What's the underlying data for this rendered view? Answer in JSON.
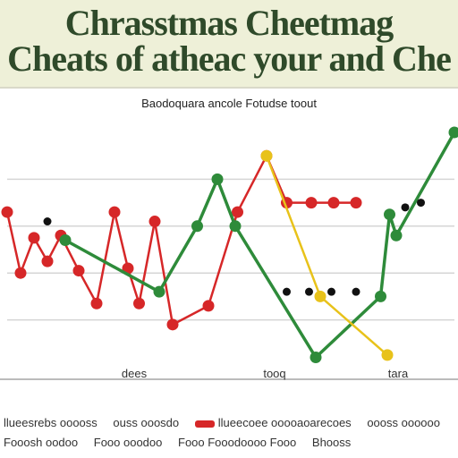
{
  "header": {
    "title_line1": "Chrasstmas Cheetmag",
    "title_line2": "Cheats of atheac your and Che"
  },
  "chart_data": {
    "type": "line",
    "title": "Baodoquara ancole Fotudse toout",
    "categories": [
      "dees",
      "tooq",
      "tara"
    ],
    "ylim": [
      0,
      10
    ],
    "grid": true,
    "series": [
      {
        "name": "lheesrebs",
        "color": "#d62728",
        "values": [
          {
            "x": 0.0,
            "y": 6.6
          },
          {
            "x": 0.6,
            "y": 4.0
          },
          {
            "x": 1.2,
            "y": 5.5
          },
          {
            "x": 1.8,
            "y": 4.5
          },
          {
            "x": 2.4,
            "y": 5.6
          },
          {
            "x": 3.2,
            "y": 4.1
          },
          {
            "x": 4.0,
            "y": 2.7
          },
          {
            "x": 4.8,
            "y": 6.6
          },
          {
            "x": 5.4,
            "y": 4.2
          },
          {
            "x": 5.9,
            "y": 2.7
          },
          {
            "x": 6.6,
            "y": 6.2
          },
          {
            "x": 7.4,
            "y": 1.8
          },
          {
            "x": 9.0,
            "y": 2.6
          },
          {
            "x": 10.3,
            "y": 6.6
          },
          {
            "x": 11.6,
            "y": 9.0
          },
          {
            "x": 12.5,
            "y": 7.0
          },
          {
            "x": 13.6,
            "y": 7.0
          },
          {
            "x": 14.6,
            "y": 7.0
          },
          {
            "x": 15.6,
            "y": 7.0
          }
        ]
      },
      {
        "name": "ouss ooosdo",
        "color": "#2e8b3a",
        "values": [
          {
            "x": 2.6,
            "y": 5.4
          },
          {
            "x": 6.8,
            "y": 3.2
          },
          {
            "x": 8.5,
            "y": 6.0
          },
          {
            "x": 9.4,
            "y": 8.0
          },
          {
            "x": 10.2,
            "y": 6.0
          },
          {
            "x": 13.8,
            "y": 0.4
          },
          {
            "x": 16.7,
            "y": 3.0
          },
          {
            "x": 17.1,
            "y": 6.5
          },
          {
            "x": 17.4,
            "y": 5.6
          },
          {
            "x": 20.0,
            "y": 10.0
          }
        ]
      },
      {
        "name": "ooooaoarecoes",
        "color": "#e8c21a",
        "values": [
          {
            "x": 11.6,
            "y": 9.0
          },
          {
            "x": 14.0,
            "y": 3.0
          },
          {
            "x": 17.0,
            "y": 0.5
          }
        ]
      },
      {
        "name": "Fooosh",
        "color": "#111111",
        "values": [
          {
            "x": 1.8,
            "y": 6.2
          },
          {
            "x": 12.5,
            "y": 3.2
          },
          {
            "x": 13.5,
            "y": 3.2
          },
          {
            "x": 14.5,
            "y": 3.2
          },
          {
            "x": 15.6,
            "y": 3.2
          },
          {
            "x": 17.8,
            "y": 6.8
          },
          {
            "x": 18.5,
            "y": 7.0
          }
        ]
      }
    ]
  },
  "legend": {
    "row1": [
      "llueesrebs ooooss",
      "ouss ooosdo",
      "llueecoee ooooaoarecoes",
      "oooss oooooo"
    ],
    "row2": [
      "Fooosh oodoo",
      "Fooo ooodoo",
      "Fooo Fooodoooo Fooo",
      "Bhooss"
    ]
  }
}
